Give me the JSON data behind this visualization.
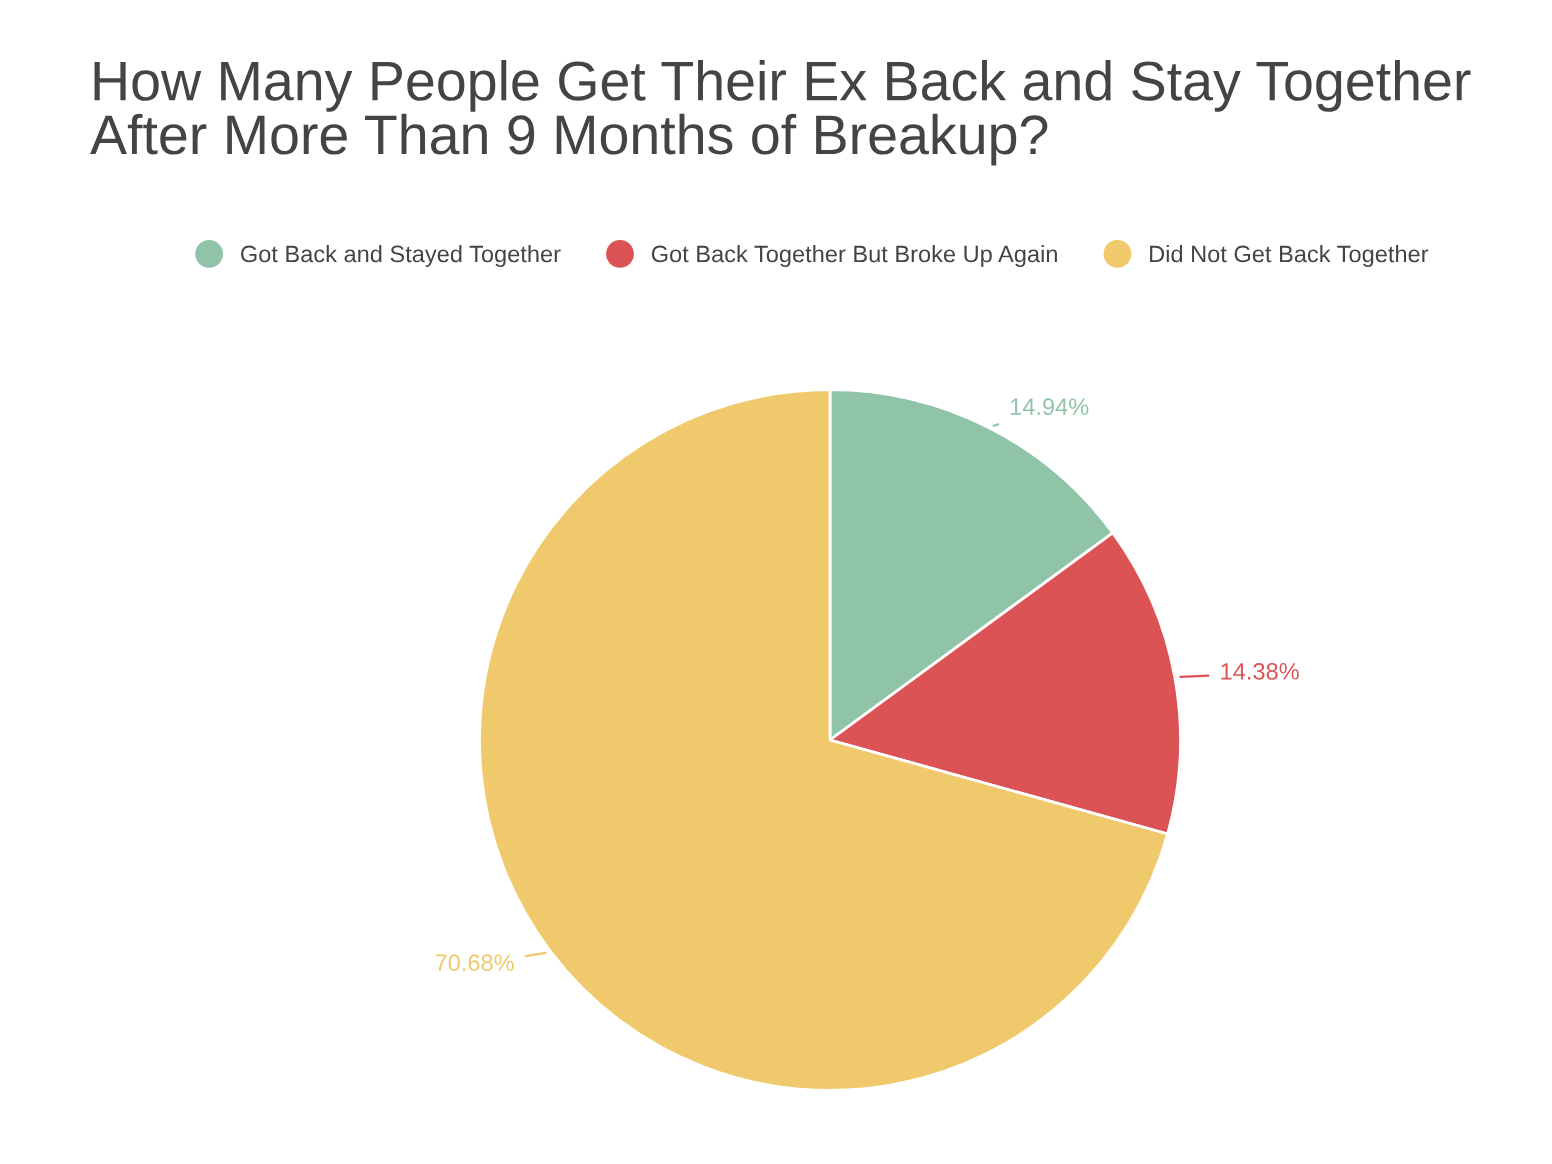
{
  "chart_data": {
    "type": "pie",
    "title": "How Many People Get Their Ex Back and Stay Together\nAfter More Than 9 Months of Breakup?",
    "categories": [
      "Got Back and Stayed Together",
      "Got Back Together But Broke Up Again",
      "Did Not Get Back Together"
    ],
    "values": [
      14.94,
      14.38,
      70.68
    ],
    "colors": [
      "#8fc4a8",
      "#dc5356",
      "#efc96b"
    ],
    "value_labels": [
      "14.94%",
      "14.38%",
      "70.68%"
    ],
    "legend": "top"
  }
}
